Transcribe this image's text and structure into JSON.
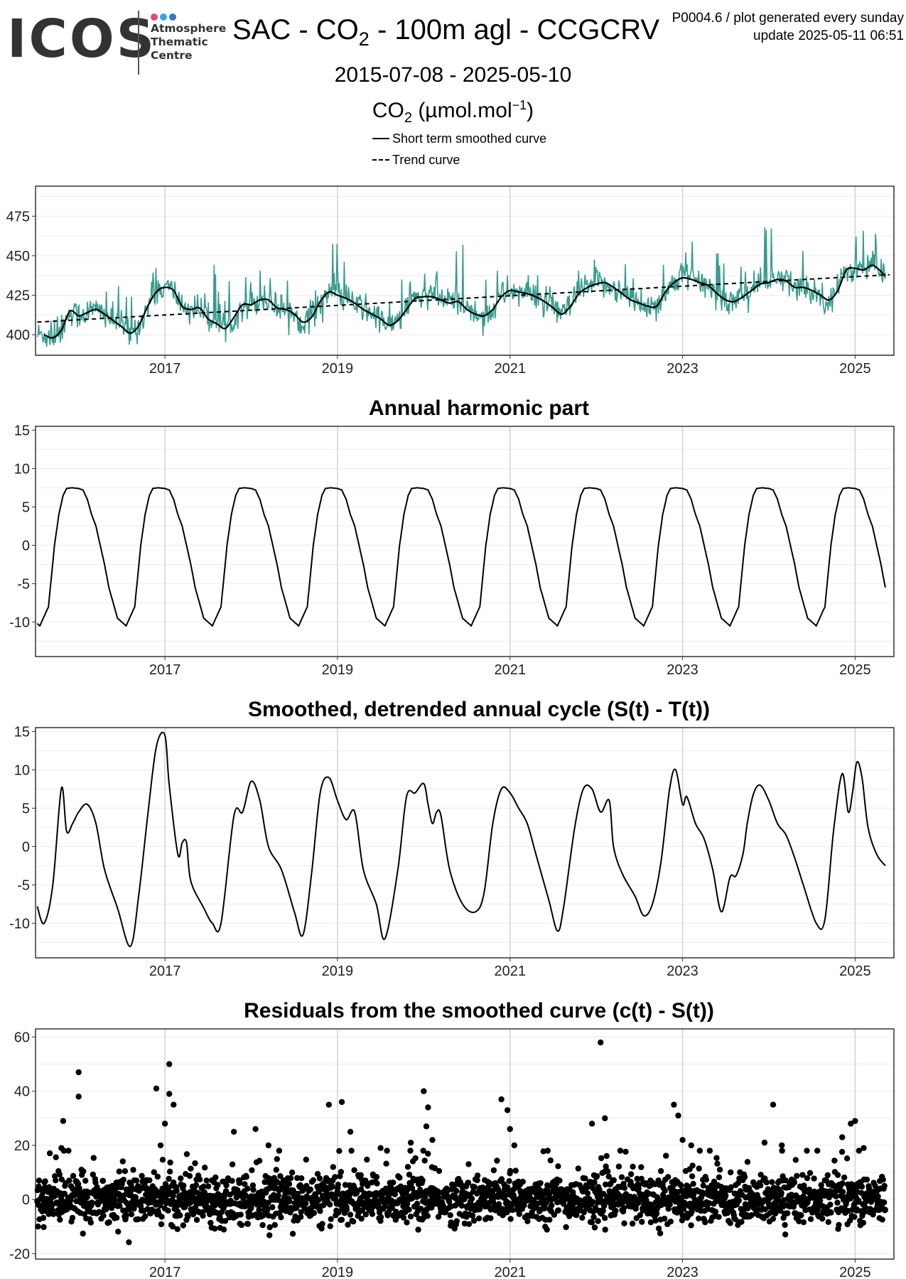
{
  "logo": {
    "word": "ICOS",
    "line1": "Atmosphere",
    "line2": "Thematic",
    "line3": "Centre",
    "dot_colors": [
      "#e8457a",
      "#30a9e0",
      "#3b73c9"
    ]
  },
  "header": {
    "title_prefix": "SAC - CO",
    "title_sub": "2",
    "title_suffix": " - 100m agl - CCGCRV",
    "version_line": "P0004.6 / plot generated every sunday",
    "update_line": "update  2025-05-11 06:51",
    "period": "2015-07-08 - 2025-05-10",
    "unit_prefix": "CO",
    "unit_sub": "2",
    "unit_mid": " (µmol.mol",
    "unit_sup": "−1",
    "unit_suffix": ")"
  },
  "legend": {
    "short_term": "Short term smoothed curve",
    "trend": "Trend curve"
  },
  "colors": {
    "observations": "#3a9b8e",
    "curve": "#000000",
    "grid_major": "#cfcfcf",
    "grid_minor": "#ececec"
  },
  "chart_data": [
    {
      "type": "line",
      "title": "",
      "xlim": [
        2015.5,
        2025.45
      ],
      "ylim": [
        387,
        494
      ],
      "x_ticks": [
        2017,
        2019,
        2021,
        2023,
        2025
      ],
      "y_ticks": [
        400,
        425,
        450,
        475
      ],
      "x_tick_labels": [
        "2017",
        "2019",
        "2021",
        "2023",
        "2025"
      ],
      "y_tick_labels": [
        "400",
        "425",
        "450",
        "475"
      ],
      "grid": true,
      "series": [
        {
          "name": "Short term smoothed curve",
          "style": "solid",
          "x": [
            2015.6,
            2015.7,
            2015.8,
            2015.9,
            2016.0,
            2016.1,
            2016.2,
            2016.3,
            2016.4,
            2016.5,
            2016.6,
            2016.7,
            2016.8,
            2016.9,
            2017.0,
            2017.1,
            2017.2,
            2017.3,
            2017.4,
            2017.5,
            2017.6,
            2017.7,
            2017.8,
            2017.9,
            2018.0,
            2018.1,
            2018.2,
            2018.3,
            2018.4,
            2018.5,
            2018.6,
            2018.7,
            2018.8,
            2018.9,
            2019.0,
            2019.1,
            2019.2,
            2019.3,
            2019.4,
            2019.5,
            2019.6,
            2019.7,
            2019.8,
            2019.9,
            2020.0,
            2020.1,
            2020.2,
            2020.3,
            2020.4,
            2020.5,
            2020.6,
            2020.7,
            2020.8,
            2020.9,
            2021.0,
            2021.1,
            2021.2,
            2021.3,
            2021.4,
            2021.5,
            2021.6,
            2021.7,
            2021.8,
            2021.9,
            2022.0,
            2022.1,
            2022.2,
            2022.3,
            2022.4,
            2022.5,
            2022.6,
            2022.7,
            2022.8,
            2022.9,
            2023.0,
            2023.1,
            2023.2,
            2023.3,
            2023.4,
            2023.5,
            2023.6,
            2023.7,
            2023.8,
            2023.9,
            2024.0,
            2024.1,
            2024.2,
            2024.3,
            2024.4,
            2024.5,
            2024.6,
            2024.7,
            2024.8,
            2024.9,
            2025.0,
            2025.1,
            2025.2,
            2025.3,
            2025.35
          ],
          "values": [
            400,
            398,
            403,
            415,
            412,
            414,
            416,
            413,
            409,
            405,
            401,
            406,
            418,
            427,
            430,
            428,
            418,
            416,
            417,
            410,
            407,
            404,
            411,
            419,
            419,
            422,
            422,
            417,
            416,
            413,
            408,
            411,
            421,
            427,
            425,
            423,
            420,
            416,
            413,
            410,
            406,
            409,
            416,
            423,
            424,
            424,
            422,
            420,
            421,
            416,
            413,
            412,
            416,
            424,
            428,
            427,
            426,
            424,
            421,
            417,
            413,
            418,
            426,
            430,
            432,
            433,
            430,
            426,
            422,
            420,
            418,
            418,
            427,
            433,
            436,
            435,
            433,
            431,
            426,
            422,
            421,
            424,
            428,
            432,
            433,
            435,
            434,
            430,
            430,
            428,
            425,
            422,
            428,
            441,
            442,
            441,
            444,
            440,
            437
          ]
        },
        {
          "name": "Trend curve",
          "style": "dashed",
          "x": [
            2015.52,
            2025.4
          ],
          "values": [
            408,
            438
          ]
        }
      ]
    },
    {
      "type": "line",
      "title": "Annual harmonic part",
      "xlim": [
        2015.5,
        2025.45
      ],
      "ylim": [
        -14.5,
        15.5
      ],
      "x_ticks": [
        2017,
        2019,
        2021,
        2023,
        2025
      ],
      "y_ticks": [
        -10,
        -5,
        0,
        5,
        10,
        15
      ],
      "x_tick_labels": [
        "2017",
        "2019",
        "2021",
        "2023",
        "2025"
      ],
      "y_tick_labels": [
        "-10",
        "-5",
        "0",
        "5",
        "10",
        "15"
      ],
      "grid": true,
      "cycle_template": {
        "phase": [
          0,
          0.05,
          0.1,
          0.15,
          0.2,
          0.3,
          0.35,
          0.45,
          0.55,
          0.65,
          0.72,
          0.77,
          0.82,
          0.86,
          0.92,
          1.0
        ],
        "values": [
          7.4,
          7.2,
          6.0,
          4.0,
          2.5,
          -2.5,
          -5.5,
          -9.5,
          -10.5,
          -8.0,
          0.0,
          4.0,
          6.5,
          7.4,
          7.5,
          7.4
        ]
      },
      "x_range": [
        2015.52,
        2025.35
      ]
    },
    {
      "type": "line",
      "title": "Smoothed, detrended annual cycle (S(t) - T(t))",
      "xlim": [
        2015.5,
        2025.45
      ],
      "ylim": [
        -14.5,
        15.5
      ],
      "x_ticks": [
        2017,
        2019,
        2021,
        2023,
        2025
      ],
      "y_ticks": [
        -10,
        -5,
        0,
        5,
        10,
        15
      ],
      "x_tick_labels": [
        "2017",
        "2019",
        "2021",
        "2023",
        "2025"
      ],
      "y_tick_labels": [
        "-10",
        "-5",
        "0",
        "5",
        "10",
        "15"
      ],
      "grid": true,
      "x": [
        2015.52,
        2015.6,
        2015.7,
        2015.8,
        2015.86,
        2015.93,
        2016.0,
        2016.1,
        2016.2,
        2016.3,
        2016.45,
        2016.6,
        2016.7,
        2016.8,
        2016.9,
        2017.0,
        2017.05,
        2017.15,
        2017.2,
        2017.25,
        2017.3,
        2017.45,
        2017.55,
        2017.65,
        2017.8,
        2017.9,
        2018.0,
        2018.1,
        2018.2,
        2018.35,
        2018.5,
        2018.6,
        2018.7,
        2018.8,
        2018.9,
        2019.0,
        2019.1,
        2019.2,
        2019.3,
        2019.45,
        2019.55,
        2019.7,
        2019.8,
        2019.9,
        2020.0,
        2020.05,
        2020.1,
        2020.15,
        2020.2,
        2020.3,
        2020.45,
        2020.6,
        2020.7,
        2020.8,
        2020.9,
        2021.0,
        2021.1,
        2021.2,
        2021.3,
        2021.45,
        2021.55,
        2021.62,
        2021.75,
        2021.85,
        2021.95,
        2022.05,
        2022.15,
        2022.2,
        2022.3,
        2022.45,
        2022.55,
        2022.65,
        2022.75,
        2022.85,
        2022.92,
        2023.0,
        2023.05,
        2023.15,
        2023.25,
        2023.35,
        2023.45,
        2023.55,
        2023.62,
        2023.7,
        2023.75,
        2023.82,
        2023.9,
        2024.0,
        2024.1,
        2024.2,
        2024.3,
        2024.4,
        2024.55,
        2024.65,
        2024.75,
        2024.85,
        2024.92,
        2024.97,
        2025.02,
        2025.08,
        2025.15,
        2025.25,
        2025.35
      ],
      "values": [
        -7.8,
        -10.0,
        -5.0,
        7.6,
        2.0,
        3.0,
        4.5,
        5.5,
        3.0,
        -3.0,
        -8.0,
        -13.0,
        -6.0,
        4.0,
        13.0,
        14.5,
        8.0,
        -1.0,
        0.5,
        0.5,
        -4.5,
        -8.0,
        -10.0,
        -10.0,
        4.0,
        4.5,
        8.5,
        6.0,
        0.0,
        -3.0,
        -8.5,
        -11.5,
        -3.5,
        7.0,
        9.0,
        6.0,
        3.5,
        4.5,
        -3.0,
        -7.5,
        -12.0,
        -3.0,
        6.5,
        7.0,
        8.2,
        5.5,
        3.0,
        4.5,
        4.0,
        -3.0,
        -7.5,
        -8.5,
        -6.0,
        3.0,
        7.5,
        7.0,
        5.0,
        3.0,
        -1.0,
        -7.0,
        -11.0,
        -8.0,
        2.5,
        7.5,
        7.5,
        4.5,
        6.0,
        0.0,
        -3.5,
        -6.5,
        -9.0,
        -7.5,
        -2.0,
        7.5,
        10.0,
        5.5,
        6.5,
        3.0,
        1.0,
        -3.0,
        -8.5,
        -4.0,
        -3.8,
        -1.0,
        3.0,
        6.8,
        8.0,
        6.0,
        3.0,
        1.5,
        -1.5,
        -5.0,
        -10.0,
        -9.5,
        2.0,
        9.5,
        4.5,
        7.0,
        11.0,
        9.0,
        2.5,
        -1.0,
        -2.5
      ]
    },
    {
      "type": "scatter",
      "title": "Residuals from the smoothed curve (c(t) - S(t))",
      "xlim": [
        2015.5,
        2025.45
      ],
      "ylim": [
        -22,
        63
      ],
      "x_ticks": [
        2017,
        2019,
        2021,
        2023,
        2025
      ],
      "y_ticks": [
        -20,
        0,
        20,
        40,
        60
      ],
      "x_tick_labels": [
        "2017",
        "2019",
        "2021",
        "2023",
        "2025"
      ],
      "y_tick_labels": [
        "-20",
        "0",
        "20",
        "40",
        "60"
      ],
      "grid": true,
      "x_range": [
        2015.52,
        2025.35
      ],
      "typical_spread": [
        -12,
        12
      ],
      "outliers_x": [
        2015.82,
        2016.0,
        2016.0,
        2015.8,
        2016.9,
        2017.05,
        2017.05,
        2017.1,
        2017.0,
        2016.95,
        2017.8,
        2018.05,
        2018.2,
        2018.9,
        2019.05,
        2019.15,
        2019.5,
        2019.85,
        2020.0,
        2020.05,
        2020.03,
        2020.1,
        2020.9,
        2020.97,
        2021.0,
        2021.05,
        2021.95,
        2022.05,
        2022.1,
        2022.9,
        2022.95,
        2023.0,
        2023.1,
        2023.2,
        2023.95,
        2024.05,
        2024.15,
        2024.85,
        2024.95,
        2025.0,
        2025.1
      ],
      "outliers_y": [
        29,
        47,
        38,
        19,
        41,
        50,
        39,
        35,
        28,
        20,
        25,
        26,
        20,
        35,
        36,
        25,
        19,
        21,
        40,
        34,
        27,
        22,
        37,
        33,
        26,
        20,
        28,
        58,
        30,
        35,
        31,
        22,
        20,
        18,
        21,
        35,
        20,
        23,
        28,
        29,
        19
      ]
    }
  ]
}
